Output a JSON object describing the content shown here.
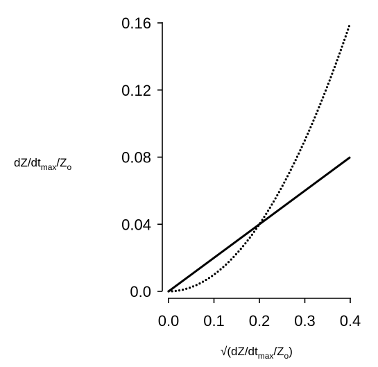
{
  "chart_data": {
    "type": "line",
    "xlabel": "√(dZ/dtmax/Zo)",
    "xlabel_parts": [
      "√(dZ/dt",
      "max",
      "/Z",
      "o",
      ")"
    ],
    "ylabel": "dZ/dtmax/Zo",
    "ylabel_parts": [
      "dZ/dt",
      "max",
      "/Z",
      "o"
    ],
    "xlim": [
      0.0,
      0.4
    ],
    "ylim": [
      0.0,
      0.16
    ],
    "x_ticks": [
      "0.0",
      "0.1",
      "0.2",
      "0.3",
      "0.4"
    ],
    "y_ticks": [
      "0.0",
      "0.04",
      "0.08",
      "0.12",
      "0.16"
    ],
    "x_tick_values": [
      0.0,
      0.1,
      0.2,
      0.3,
      0.4
    ],
    "y_tick_values": [
      0.0,
      0.04,
      0.08,
      0.12,
      0.16
    ],
    "grid": false,
    "series": [
      {
        "style": "solid",
        "x": [
          0.0,
          0.4
        ],
        "y": [
          0.0,
          0.08
        ]
      },
      {
        "style": "dotted",
        "x": [
          0.0,
          0.05,
          0.1,
          0.15,
          0.2,
          0.25,
          0.3,
          0.35,
          0.4
        ],
        "y": [
          0.0,
          0.0025,
          0.01,
          0.0225,
          0.04,
          0.0625,
          0.09,
          0.1225,
          0.16
        ]
      }
    ]
  }
}
